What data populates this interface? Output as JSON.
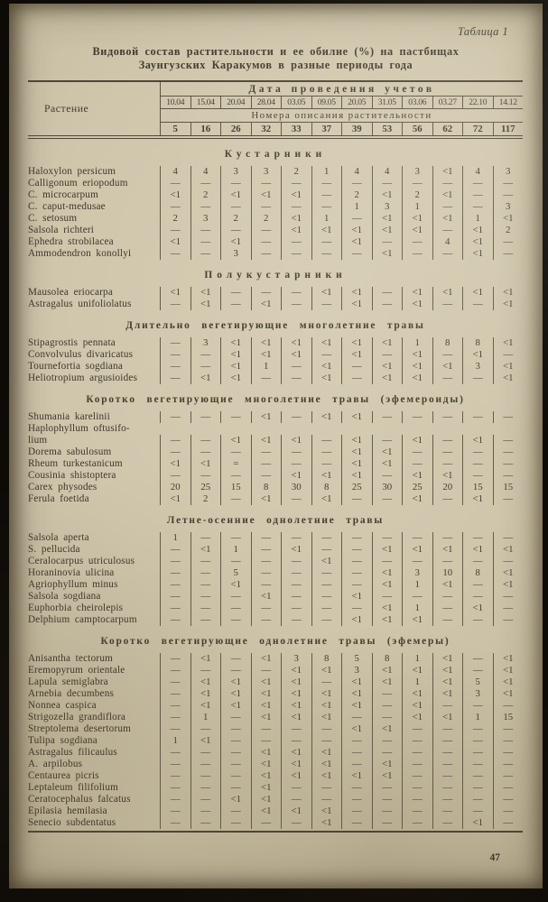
{
  "page": {
    "table_label": "Таблица 1",
    "title_line1": "Видовой состав растительности и ее обилие (%) на пастбищах",
    "title_line2": "Заунгузских Каракумов в разные периоды года",
    "page_number": "47"
  },
  "table": {
    "plant_column_header": "Растение",
    "dates_header": "Дата проведения учетов",
    "dates": [
      "10.04",
      "15.04",
      "20.04",
      "28.04",
      "03.05",
      "09.05",
      "20.05",
      "31.05",
      "03.06",
      "03.27",
      "22.10",
      "14.12"
    ],
    "numbers_header": "Номера описания растительности",
    "numbers": [
      "5",
      "16",
      "26",
      "32",
      "33",
      "37",
      "39",
      "53",
      "56",
      "62",
      "72",
      "117"
    ],
    "sections": [
      {
        "heading": "Кустарники",
        "rows": [
          {
            "name": "Haloxylon persicum",
            "values": [
              "4",
              "4",
              "3",
              "3",
              "2",
              "1",
              "4",
              "4",
              "3",
              "<1",
              "4",
              "3"
            ]
          },
          {
            "name": "Calligonum eriopodum",
            "values": [
              "—",
              "—",
              "—",
              "—",
              "—",
              "—",
              "—",
              "—",
              "—",
              "—",
              "—",
              "—"
            ]
          },
          {
            "name": "C. microcarpum",
            "values": [
              "<1",
              "2",
              "<1",
              "<1",
              "<1",
              "—",
              "2",
              "<1",
              "2",
              "<1",
              "—",
              "—"
            ]
          },
          {
            "name": "C. caput-medusae",
            "values": [
              "—",
              "—",
              "—",
              "—",
              "—",
              "—",
              "1",
              "3",
              "1",
              "—",
              "—",
              "3"
            ]
          },
          {
            "name": "C. setosum",
            "values": [
              "2",
              "3",
              "2",
              "2",
              "<1",
              "1",
              "—",
              "<1",
              "<1",
              "<1",
              "1",
              "<1"
            ]
          },
          {
            "name": "Salsola richteri",
            "values": [
              "—",
              "—",
              "—",
              "—",
              "<1",
              "<1",
              "<1",
              "<1",
              "<1",
              "—",
              "<1",
              "2"
            ]
          },
          {
            "name": "Ephedra strobilacea",
            "values": [
              "<1",
              "—",
              "<1",
              "—",
              "—",
              "—",
              "<1",
              "—",
              "—",
              "4",
              "<1",
              "—"
            ]
          },
          {
            "name": "Ammodendron konollyi",
            "values": [
              "—",
              "—",
              "3",
              "—",
              "—",
              "—",
              "—",
              "<1",
              "—",
              "—",
              "<1",
              "—"
            ]
          }
        ]
      },
      {
        "heading": "Полукустарники",
        "rows": [
          {
            "name": "Mausolea eriocarpa",
            "values": [
              "<1",
              "<1",
              "—",
              "—",
              "—",
              "<1",
              "<1",
              "—",
              "<1",
              "<1",
              "<1",
              "<1"
            ]
          },
          {
            "name": "Astragalus unifoliolatus",
            "values": [
              "—",
              "<1",
              "—",
              "<1",
              "—",
              "—",
              "<1",
              "—",
              "<1",
              "—",
              "—",
              "<1"
            ]
          }
        ]
      },
      {
        "heading": "Длительно вегетирующие многолетние травы",
        "rows": [
          {
            "name": "Stipagrostis pennata",
            "values": [
              "—",
              "3",
              "<1",
              "<1",
              "<1",
              "<1",
              "<1",
              "<1",
              "1",
              "8",
              "8",
              "<1"
            ]
          },
          {
            "name": "Convolvulus divaricatus",
            "values": [
              "—",
              "—",
              "<1",
              "<1",
              "<1",
              "—",
              "<1",
              "—",
              "<1",
              "—",
              "<1",
              "—"
            ]
          },
          {
            "name": "Tournefortia sogdiana",
            "values": [
              "—",
              "—",
              "<1",
              "1",
              "—",
              "<1",
              "—",
              "<1",
              "<1",
              "<1",
              "3",
              "<1"
            ]
          },
          {
            "name": "Heliotropium argusioides",
            "values": [
              "—",
              "<1",
              "<1",
              "—",
              "—",
              "<1",
              "—",
              "<1",
              "<1",
              "—",
              "—",
              "<1"
            ]
          }
        ]
      },
      {
        "heading": "Коротко вегетирующие многолетние травы (эфемероиды)",
        "rows": [
          {
            "name": "Shumania karelinii",
            "values": [
              "—",
              "—",
              "—",
              "<1",
              "—",
              "<1",
              "<1",
              "—",
              "—",
              "—",
              "—",
              "—"
            ]
          },
          {
            "name": "Haplophyllum  oftusifo-\nlium",
            "values": [
              "—",
              "—",
              "<1",
              "<1",
              "<1",
              "—",
              "<1",
              "—",
              "<1",
              "—",
              "<1",
              "—"
            ]
          },
          {
            "name": "Dorema sabulosum",
            "values": [
              "—",
              "—",
              "—",
              "—",
              "—",
              "—",
              "<1",
              "<1",
              "—",
              "—",
              "—",
              "—"
            ]
          },
          {
            "name": "Rheum turkestanicum",
            "values": [
              "<1",
              "<1",
              "=",
              "—",
              "—",
              "—",
              "<1",
              "<1",
              "—",
              "—",
              "—",
              "—"
            ]
          },
          {
            "name": "Cousinia shistoptera",
            "values": [
              "—",
              "—",
              "—",
              "—",
              "<1",
              "<1",
              "<1",
              "—",
              "<1",
              "<1",
              "—",
              "—"
            ]
          },
          {
            "name": "Carex physodes",
            "values": [
              "20",
              "25",
              "15",
              "8",
              "30",
              "8",
              "25",
              "30",
              "25",
              "20",
              "15",
              "15"
            ]
          },
          {
            "name": "Ferula foetida",
            "values": [
              "<1",
              "2",
              "—",
              "<1",
              "—",
              "<1",
              "—",
              "—",
              "<1",
              "—",
              "<1",
              "—"
            ]
          }
        ]
      },
      {
        "heading": "Летне-осенние однолетние травы",
        "rows": [
          {
            "name": "Salsola aperta",
            "values": [
              "1",
              "—",
              "—",
              "—",
              "—",
              "—",
              "—",
              "—",
              "—",
              "—",
              "—",
              "—"
            ]
          },
          {
            "name": "S. pellucida",
            "values": [
              "—",
              "<1",
              "1",
              "—",
              "<1",
              "—",
              "—",
              "<1",
              "<1",
              "<1",
              "<1",
              "<1"
            ]
          },
          {
            "name": "Ceralocarpus utriculosus",
            "values": [
              "—",
              "—",
              "—",
              "—",
              "—",
              "<1",
              "—",
              "—",
              "—",
              "—",
              "—",
              "—"
            ]
          },
          {
            "name": "Horaninovia ulicina",
            "values": [
              "—",
              "—",
              "5",
              "—",
              "—",
              "—",
              "—",
              "<1",
              "3",
              "10",
              "8",
              "<1"
            ]
          },
          {
            "name": "Agriophyllum minus",
            "values": [
              "—",
              "—",
              "<1",
              "—",
              "—",
              "—",
              "—",
              "<1",
              "1",
              "<1",
              "—",
              "<1"
            ]
          },
          {
            "name": "Salsola sogdiana",
            "values": [
              "—",
              "—",
              "—",
              "<1",
              "—",
              "—",
              "<1",
              "—",
              "—",
              "—",
              "—",
              "—"
            ]
          },
          {
            "name": "Euphorbia cheirolepis",
            "values": [
              "—",
              "—",
              "—",
              "—",
              "—",
              "—",
              "—",
              "<1",
              "1",
              "—",
              "<1",
              "—"
            ]
          },
          {
            "name": "Delphium camptocarpum",
            "values": [
              "—",
              "—",
              "—",
              "—",
              "—",
              "—",
              "<1",
              "<1",
              "<1",
              "—",
              "—",
              "—"
            ]
          }
        ]
      },
      {
        "heading": "Коротко вегетирующие однолетние травы (эфемеры)",
        "rows": [
          {
            "name": "Anisantha tectorum",
            "values": [
              "—",
              "<1",
              "—",
              "<1",
              "3",
              "8",
              "5",
              "8",
              "1",
              "<1",
              "—",
              "<1"
            ]
          },
          {
            "name": "Eremopyrum orientale",
            "values": [
              "—",
              "—",
              "—",
              "—",
              "<1",
              "<1",
              "3",
              "<1",
              "<1",
              "<1",
              "—",
              "<1"
            ]
          },
          {
            "name": "Lapula semiglabra",
            "values": [
              "—",
              "<1",
              "<1",
              "<1",
              "<1",
              "—",
              "<1",
              "<1",
              "1",
              "<1",
              "5",
              "<1"
            ]
          },
          {
            "name": "Arnebia decumbens",
            "values": [
              "—",
              "<1",
              "<1",
              "<1",
              "<1",
              "<1",
              "<1",
              "—",
              "<1",
              "<1",
              "3",
              "<1"
            ]
          },
          {
            "name": "Nonnea caspica",
            "values": [
              "—",
              "<1",
              "<1",
              "<1",
              "<1",
              "<1",
              "<1",
              "—",
              "<1",
              "—",
              "—",
              "—"
            ]
          },
          {
            "name": "Strigozella grandiflora",
            "values": [
              "—",
              "1",
              "—",
              "<1",
              "<1",
              "<1",
              "—",
              "—",
              "<1",
              "<1",
              "1",
              "15"
            ]
          },
          {
            "name": "Streptolema desertorum",
            "values": [
              "—",
              "—",
              "—",
              "—",
              "—",
              "—",
              "<1",
              "<1",
              "—",
              "—",
              "—",
              "—"
            ]
          },
          {
            "name": "Tulipa sogdiana",
            "values": [
              "1",
              "<1",
              "—",
              "—",
              "—",
              "—",
              "—",
              "—",
              "—",
              "—",
              "—",
              "—"
            ]
          },
          {
            "name": "Astragalus filicaulus",
            "values": [
              "—",
              "—",
              "—",
              "<1",
              "<1",
              "<1",
              "—",
              "—",
              "—",
              "—",
              "—",
              "—"
            ]
          },
          {
            "name": "A. arpilobus",
            "values": [
              "—",
              "—",
              "—",
              "<1",
              "<1",
              "<1",
              "—",
              "<1",
              "—",
              "—",
              "—",
              "—"
            ]
          },
          {
            "name": "Centaurea picris",
            "values": [
              "—",
              "—",
              "—",
              "<1",
              "<1",
              "<1",
              "<1",
              "<1",
              "—",
              "—",
              "—",
              "—"
            ]
          },
          {
            "name": "Leptaleum filifolium",
            "values": [
              "—",
              "—",
              "—",
              "<1",
              "—",
              "—",
              "—",
              "—",
              "—",
              "—",
              "—",
              "—"
            ]
          },
          {
            "name": "Ceratocephalus falcatus",
            "values": [
              "—",
              "—",
              "<1",
              "<1",
              "—",
              "—",
              "—",
              "—",
              "—",
              "—",
              "—",
              "—"
            ]
          },
          {
            "name": "Epilasia hemilasia",
            "values": [
              "—",
              "—",
              "—",
              "<1",
              "<1",
              "<1",
              "—",
              "—",
              "—",
              "—",
              "—",
              "—"
            ]
          },
          {
            "name": "Senecio subdentatus",
            "values": [
              "—",
              "—",
              "—",
              "—",
              "—",
              "<1",
              "—",
              "—",
              "—",
              "—",
              "<1",
              "—"
            ]
          }
        ]
      }
    ]
  },
  "colors": {
    "page_background": "#cfc6ac",
    "ink": "#433c30",
    "rule": "#5c5342",
    "photo_frame": "#0e0b07"
  }
}
